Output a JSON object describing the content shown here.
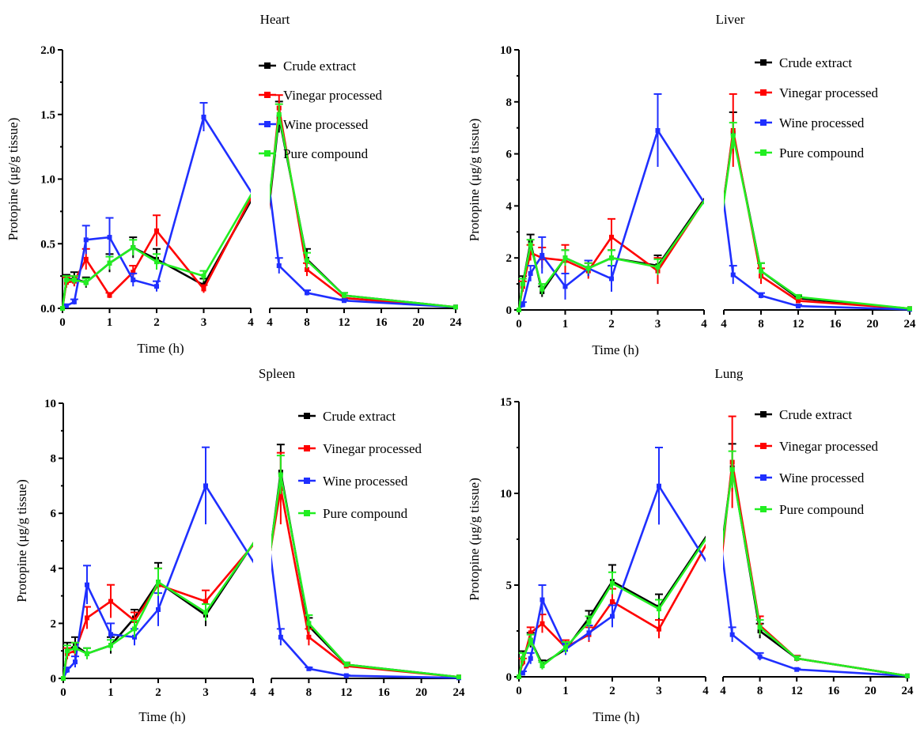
{
  "colors": {
    "Crude extract": "#000000",
    "Vinegar processed": "#ff0000",
    "Wine processed": "#1f2fff",
    "Pure compound": "#22ee22"
  },
  "chart_data": [
    {
      "type": "line",
      "title": "Heart",
      "xlabel": "Time (h)",
      "ylabel": "Protopine (μg/g tissue)",
      "ylim": [
        0,
        2.0
      ],
      "yticks": [
        "0.0",
        "0.5",
        "1.0",
        "1.5",
        "2.0"
      ],
      "xticks_left": [
        "0",
        "1",
        "2",
        "3",
        "4"
      ],
      "xticks_right": [
        "4",
        "8",
        "12",
        "16",
        "20",
        "24"
      ],
      "x": [
        0,
        0.083,
        0.25,
        0.5,
        1,
        1.5,
        2,
        3,
        5,
        8,
        12,
        24
      ],
      "series": [
        {
          "name": "Crude extract",
          "values": [
            0,
            0.22,
            0.23,
            0.2,
            0.35,
            0.47,
            0.38,
            0.18,
            1.48,
            0.38,
            0.1,
            0.01
          ],
          "err": [
            0,
            0.04,
            0.05,
            0.04,
            0.07,
            0.08,
            0.08,
            0.05,
            0.12,
            0.08,
            0.02,
            0
          ]
        },
        {
          "name": "Vinegar processed",
          "values": [
            0,
            0.2,
            0.21,
            0.38,
            0.1,
            0.28,
            0.6,
            0.15,
            1.55,
            0.3,
            0.08,
            0.01
          ],
          "err": [
            0,
            0.04,
            0.04,
            0.08,
            0.02,
            0.05,
            0.12,
            0.03,
            0.1,
            0.05,
            0.02,
            0
          ]
        },
        {
          "name": "Wine processed",
          "values": [
            0,
            0.02,
            0.05,
            0.53,
            0.55,
            0.22,
            0.17,
            1.48,
            0.33,
            0.12,
            0.06,
            0.01
          ],
          "err": [
            0,
            0.01,
            0.02,
            0.11,
            0.15,
            0.05,
            0.04,
            0.11,
            0.06,
            0.02,
            0.01,
            0
          ]
        },
        {
          "name": "Pure compound",
          "values": [
            0,
            0.22,
            0.22,
            0.2,
            0.35,
            0.47,
            0.36,
            0.25,
            1.5,
            0.37,
            0.1,
            0.01
          ],
          "err": [
            0,
            0.03,
            0.03,
            0.03,
            0.05,
            0.06,
            0.06,
            0.04,
            0.08,
            0.06,
            0.02,
            0
          ]
        }
      ]
    },
    {
      "type": "line",
      "title": "Liver",
      "xlabel": "Time (h)",
      "ylabel": "Protopine (μg/g tissue)",
      "ylim": [
        0,
        10
      ],
      "yticks": [
        "0",
        "2",
        "4",
        "6",
        "8",
        "10"
      ],
      "xticks_left": [
        "0",
        "1",
        "2",
        "3",
        "4"
      ],
      "xticks_right": [
        "4",
        "8",
        "12",
        "16",
        "20",
        "24"
      ],
      "x": [
        0,
        0.083,
        0.25,
        0.5,
        1,
        1.5,
        2,
        3,
        5,
        8,
        12,
        24
      ],
      "series": [
        {
          "name": "Crude extract",
          "values": [
            0,
            1.0,
            2.6,
            0.7,
            2.0,
            1.6,
            2.0,
            1.7,
            6.8,
            1.5,
            0.45,
            0.05
          ],
          "err": [
            0,
            0.3,
            0.3,
            0.2,
            0.3,
            0.3,
            0.3,
            0.4,
            0.8,
            0.3,
            0.08,
            0
          ]
        },
        {
          "name": "Vinegar processed",
          "values": [
            0,
            0.9,
            2.2,
            2.0,
            1.9,
            1.5,
            2.8,
            1.5,
            6.9,
            1.3,
            0.35,
            0.05
          ],
          "err": [
            0,
            0.2,
            0.3,
            0.4,
            0.6,
            0.3,
            0.7,
            0.5,
            1.4,
            0.3,
            0.08,
            0
          ]
        },
        {
          "name": "Wine processed",
          "values": [
            0,
            0.2,
            1.4,
            2.1,
            0.9,
            1.6,
            1.2,
            6.9,
            1.35,
            0.55,
            0.15,
            0.02
          ],
          "err": [
            0,
            0.1,
            0.3,
            0.7,
            0.5,
            0.3,
            0.5,
            1.4,
            0.35,
            0.1,
            0.05,
            0
          ]
        },
        {
          "name": "Pure compound",
          "values": [
            0,
            1.0,
            2.5,
            0.8,
            2.0,
            1.6,
            2.0,
            1.65,
            6.7,
            1.5,
            0.5,
            0.05
          ],
          "err": [
            0,
            0.2,
            0.2,
            0.2,
            0.3,
            0.2,
            0.3,
            0.3,
            0.5,
            0.3,
            0.08,
            0
          ]
        }
      ]
    },
    {
      "type": "line",
      "title": "Spleen",
      "xlabel": "Time (h)",
      "ylabel": "Protopine (μg/g tissue)",
      "ylim": [
        0,
        10
      ],
      "yticks": [
        "0",
        "2",
        "4",
        "6",
        "8",
        "10"
      ],
      "xticks_left": [
        "0",
        "1",
        "2",
        "3",
        "4"
      ],
      "xticks_right": [
        "4",
        "8",
        "12",
        "16",
        "20",
        "24"
      ],
      "x": [
        0,
        0.083,
        0.25,
        0.5,
        1,
        1.5,
        2,
        3,
        5,
        8,
        12,
        24
      ],
      "series": [
        {
          "name": "Crude extract",
          "values": [
            0,
            1.0,
            1.2,
            0.9,
            1.2,
            2.2,
            3.5,
            2.3,
            7.5,
            1.9,
            0.5,
            0.05
          ],
          "err": [
            0,
            0.3,
            0.3,
            0.2,
            0.3,
            0.3,
            0.7,
            0.4,
            1.0,
            0.3,
            0.08,
            0
          ]
        },
        {
          "name": "Vinegar processed",
          "values": [
            0,
            0.9,
            1.0,
            2.2,
            2.8,
            2.1,
            3.4,
            2.8,
            6.9,
            1.5,
            0.45,
            0.05
          ],
          "err": [
            0,
            0.2,
            0.3,
            0.4,
            0.6,
            0.3,
            0.6,
            0.4,
            1.3,
            0.3,
            0.08,
            0
          ]
        },
        {
          "name": "Wine processed",
          "values": [
            0,
            0.3,
            0.6,
            3.4,
            1.6,
            1.5,
            2.5,
            7.0,
            1.5,
            0.35,
            0.1,
            0.02
          ],
          "err": [
            0,
            0.1,
            0.2,
            0.7,
            0.4,
            0.3,
            0.6,
            1.4,
            0.3,
            0.05,
            0.02,
            0
          ]
        },
        {
          "name": "Pure compound",
          "values": [
            0,
            1.0,
            1.1,
            0.9,
            1.2,
            1.8,
            3.5,
            2.4,
            7.4,
            2.0,
            0.5,
            0.05
          ],
          "err": [
            0,
            0.2,
            0.2,
            0.2,
            0.2,
            0.3,
            0.5,
            0.3,
            0.7,
            0.3,
            0.08,
            0
          ]
        }
      ]
    },
    {
      "type": "line",
      "title": "Lung",
      "xlabel": "Time (h)",
      "ylabel": "Protopine (μg/g tissue)",
      "ylim": [
        0,
        15
      ],
      "yticks": [
        "0",
        "5",
        "10",
        "15"
      ],
      "xticks_left": [
        "0",
        "1",
        "2",
        "3",
        "4"
      ],
      "xticks_right": [
        "4",
        "8",
        "12",
        "16",
        "20",
        "24"
      ],
      "x": [
        0,
        0.083,
        0.25,
        0.5,
        1,
        1.5,
        2,
        3,
        5,
        8,
        12,
        24
      ],
      "series": [
        {
          "name": "Crude extract",
          "values": [
            0,
            1.0,
            2.0,
            0.7,
            1.5,
            3.2,
            5.2,
            3.8,
            11.4,
            2.5,
            1.0,
            0.05
          ],
          "err": [
            0,
            0.4,
            0.4,
            0.2,
            0.3,
            0.4,
            0.9,
            0.7,
            1.3,
            0.4,
            0.15,
            0
          ]
        },
        {
          "name": "Vinegar processed",
          "values": [
            0,
            0.8,
            2.4,
            2.9,
            1.6,
            2.3,
            4.1,
            2.6,
            11.7,
            2.8,
            1.0,
            0.05
          ],
          "err": [
            0,
            0.2,
            0.3,
            0.5,
            0.4,
            0.4,
            0.7,
            0.5,
            2.5,
            0.5,
            0.15,
            0
          ]
        },
        {
          "name": "Wine processed",
          "values": [
            0,
            0.2,
            1.0,
            4.2,
            1.5,
            2.4,
            3.3,
            10.4,
            2.3,
            1.1,
            0.4,
            0.05
          ],
          "err": [
            0,
            0.1,
            0.3,
            0.8,
            0.3,
            0.4,
            0.6,
            2.1,
            0.4,
            0.2,
            0.05,
            0
          ]
        },
        {
          "name": "Pure compound",
          "values": [
            0,
            1.0,
            2.0,
            0.6,
            1.6,
            3.0,
            5.1,
            3.7,
            11.3,
            2.7,
            1.0,
            0.05
          ],
          "err": [
            0,
            0.3,
            0.3,
            0.2,
            0.3,
            0.3,
            0.6,
            0.5,
            1.0,
            0.4,
            0.12,
            0
          ]
        }
      ]
    }
  ]
}
